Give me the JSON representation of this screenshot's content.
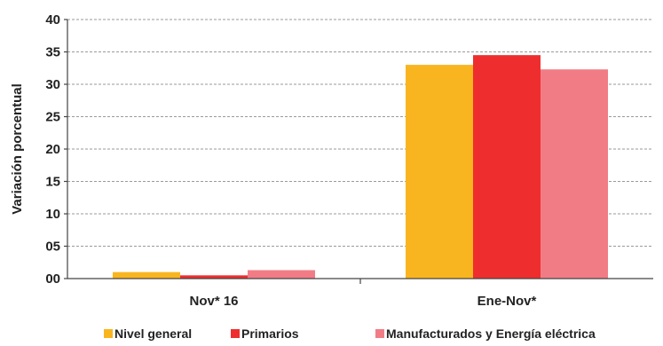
{
  "chart_data": {
    "type": "bar",
    "ylabel": "Variación porcentual",
    "xlabel": "",
    "categories": [
      "Nov* 16",
      "Ene-Nov*"
    ],
    "ylim": [
      0,
      40
    ],
    "yticks": [
      "00",
      "05",
      "10",
      "15",
      "20",
      "25",
      "30",
      "35",
      "40"
    ],
    "grid": true,
    "legend_position": "bottom",
    "series": [
      {
        "name": "Nivel general",
        "color": "#F9B51F",
        "values": [
          1.0,
          33.0
        ]
      },
      {
        "name": "Primarios",
        "color": "#EE2E2E",
        "values": [
          0.5,
          34.5
        ]
      },
      {
        "name": "Manufacturados y Energía eléctrica",
        "color": "#F27C86",
        "values": [
          1.3,
          32.3
        ]
      }
    ]
  }
}
